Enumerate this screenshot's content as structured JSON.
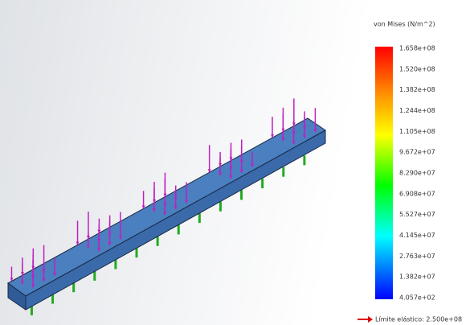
{
  "legend": {
    "title": "von Mises (N/m^2)",
    "labels": [
      "1.658e+08",
      "1.520e+08",
      "1.382e+08",
      "1.244e+08",
      "1.105e+08",
      "9.672e+07",
      "8.290e+07",
      "6.908e+07",
      "5.527e+07",
      "4.145e+07",
      "2.763e+07",
      "1.382e+07",
      "4.057e+02"
    ],
    "yield_label": "Límite elástico: 2.500e+08"
  }
}
